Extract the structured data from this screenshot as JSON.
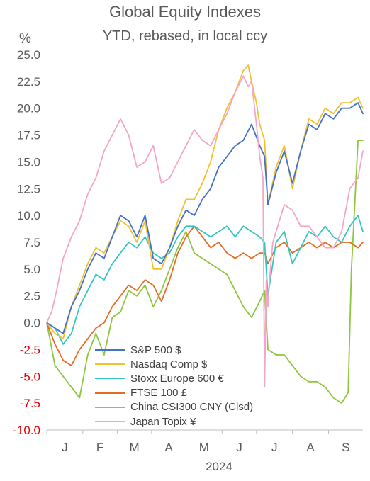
{
  "title": "Global Equity Indexes",
  "subtitle": "YTD, rebased, in local ccy",
  "unit": "%",
  "colors": {
    "negative_tick": "#e00000",
    "text": "#595959"
  },
  "chart_data": {
    "type": "line",
    "title": "Global Equity Indexes",
    "subtitle": "YTD, rebased, in local ccy",
    "ylabel": "%",
    "xlabel": "2024",
    "ylim": [
      -10,
      25
    ],
    "xlim": [
      0,
      193
    ],
    "yticks": [
      "25.0",
      "22.5",
      "20.0",
      "17.5",
      "15.0",
      "12.5",
      "10.0",
      "7.5",
      "5.0",
      "2.5",
      "0.0",
      "-2.5",
      "-5.0",
      "-7.5",
      "-10.0"
    ],
    "ytick_values": [
      25,
      22.5,
      20,
      17.5,
      15,
      12.5,
      10,
      7.5,
      5,
      2.5,
      0,
      -2.5,
      -5,
      -7.5,
      -10
    ],
    "months": [
      "J",
      "F",
      "M",
      "A",
      "M",
      "J",
      "J",
      "A",
      "S"
    ],
    "month_starts": [
      0,
      22,
      43,
      64,
      85,
      107,
      128,
      150,
      172
    ],
    "year_label": "2024",
    "grid": false,
    "legend_position": "bottom-left inside",
    "x_unit": "trading days since start of year",
    "series": [
      {
        "name": "S&P 500 $",
        "color": "#4472c4",
        "x": [
          0,
          5,
          10,
          15,
          20,
          25,
          30,
          35,
          40,
          45,
          50,
          55,
          60,
          65,
          70,
          75,
          80,
          85,
          90,
          95,
          100,
          105,
          110,
          115,
          120,
          125,
          130,
          133,
          135,
          140,
          145,
          150,
          155,
          160,
          165,
          170,
          175,
          180,
          185,
          190,
          193
        ],
        "y": [
          0,
          -0.5,
          -1.0,
          1.5,
          3.0,
          5.0,
          6.5,
          6.0,
          8.0,
          10.0,
          9.5,
          8.0,
          10.0,
          6.0,
          5.5,
          7.0,
          9.0,
          10.5,
          10.0,
          11.5,
          12.5,
          14.5,
          15.5,
          16.5,
          17.0,
          18.5,
          16.5,
          15.5,
          11.0,
          14.0,
          16.0,
          13.0,
          16.0,
          18.5,
          18.0,
          19.5,
          19.0,
          20.0,
          20.0,
          20.5,
          19.5
        ]
      },
      {
        "name": "Nasdaq Comp $",
        "color": "#f2c12e",
        "x": [
          0,
          5,
          10,
          15,
          20,
          25,
          30,
          35,
          40,
          45,
          50,
          55,
          60,
          65,
          70,
          75,
          80,
          85,
          90,
          95,
          100,
          105,
          110,
          115,
          120,
          123,
          125,
          128,
          130,
          133,
          135,
          140,
          145,
          150,
          155,
          160,
          165,
          170,
          175,
          180,
          185,
          190,
          193
        ],
        "y": [
          0,
          -1.0,
          -1.5,
          1.5,
          3.5,
          5.5,
          7.0,
          6.5,
          8.0,
          9.5,
          9.0,
          7.5,
          9.5,
          5.0,
          5.0,
          7.0,
          9.5,
          11.5,
          11.5,
          13.0,
          15.0,
          18.0,
          20.0,
          21.5,
          23.5,
          24.0,
          22.5,
          20.5,
          18.5,
          17.0,
          11.0,
          14.5,
          16.5,
          12.5,
          16.0,
          19.0,
          18.5,
          20.0,
          19.5,
          20.5,
          20.5,
          21.0,
          20.0
        ]
      },
      {
        "name": "Stoxx Europe 600 €",
        "color": "#33c5c5",
        "x": [
          0,
          5,
          10,
          15,
          20,
          25,
          30,
          35,
          40,
          45,
          50,
          55,
          60,
          65,
          70,
          75,
          80,
          85,
          90,
          95,
          100,
          105,
          110,
          115,
          120,
          125,
          130,
          133,
          135,
          140,
          145,
          150,
          155,
          160,
          165,
          170,
          175,
          180,
          185,
          190,
          193
        ],
        "y": [
          0,
          -0.5,
          -2.0,
          -1.0,
          1.5,
          3.0,
          4.5,
          4.0,
          5.5,
          6.5,
          7.5,
          7.0,
          8.0,
          6.5,
          6.0,
          6.5,
          8.0,
          9.0,
          9.0,
          8.5,
          8.0,
          8.5,
          9.0,
          8.0,
          9.0,
          8.5,
          8.0,
          7.5,
          2.5,
          7.5,
          8.5,
          5.5,
          7.0,
          8.5,
          8.0,
          9.0,
          8.0,
          7.5,
          9.0,
          10.0,
          8.5
        ]
      },
      {
        "name": "FTSE 100 £",
        "color": "#e46c22",
        "x": [
          0,
          5,
          10,
          15,
          20,
          25,
          30,
          35,
          40,
          45,
          50,
          55,
          60,
          65,
          70,
          75,
          80,
          85,
          90,
          95,
          100,
          105,
          110,
          115,
          120,
          125,
          130,
          133,
          135,
          140,
          145,
          150,
          155,
          160,
          165,
          170,
          175,
          180,
          185,
          190,
          193
        ],
        "y": [
          0,
          -2.0,
          -3.5,
          -4.0,
          -2.5,
          -1.5,
          -0.5,
          0.0,
          1.5,
          2.5,
          3.5,
          3.0,
          4.0,
          3.5,
          2.0,
          4.0,
          6.5,
          8.0,
          9.0,
          8.0,
          7.0,
          7.5,
          6.5,
          6.0,
          6.5,
          6.0,
          6.5,
          6.5,
          5.5,
          7.0,
          7.5,
          6.5,
          7.0,
          7.5,
          7.0,
          7.5,
          7.0,
          7.5,
          7.5,
          7.0,
          7.5
        ]
      },
      {
        "name": "China CSI300 CNY (Clsd)",
        "color": "#8dc63f",
        "x": [
          0,
          5,
          10,
          15,
          20,
          25,
          30,
          35,
          40,
          45,
          50,
          55,
          60,
          65,
          70,
          75,
          80,
          85,
          90,
          95,
          100,
          105,
          110,
          115,
          120,
          125,
          130,
          133,
          135,
          140,
          145,
          150,
          155,
          160,
          165,
          170,
          175,
          180,
          184,
          186,
          190,
          193
        ],
        "y": [
          0,
          -4.0,
          -5.0,
          -6.0,
          -7.0,
          -3.0,
          -1.0,
          -3.0,
          0.5,
          1.0,
          3.0,
          2.5,
          3.5,
          1.5,
          3.0,
          5.0,
          7.0,
          8.5,
          6.5,
          6.0,
          5.5,
          5.0,
          4.5,
          3.0,
          1.5,
          0.5,
          2.0,
          3.0,
          -2.5,
          -3.0,
          -3.0,
          -4.0,
          -5.0,
          -5.5,
          -5.5,
          -6.0,
          -7.0,
          -7.5,
          -6.5,
          5.0,
          17.0,
          17.0
        ]
      },
      {
        "name": "Japan Topix ¥",
        "color": "#f4a6c8",
        "x": [
          0,
          3,
          6,
          10,
          15,
          20,
          25,
          30,
          35,
          40,
          45,
          50,
          55,
          60,
          65,
          70,
          75,
          80,
          85,
          90,
          95,
          100,
          105,
          110,
          115,
          120,
          123,
          125,
          128,
          130,
          132,
          133,
          134,
          135,
          136,
          138,
          140,
          145,
          150,
          155,
          160,
          165,
          170,
          175,
          180,
          185,
          190,
          193
        ],
        "y": [
          0,
          1.0,
          3.0,
          6.0,
          8.0,
          9.5,
          12.0,
          13.5,
          16.0,
          17.5,
          19.0,
          17.5,
          14.5,
          15.0,
          16.5,
          13.0,
          13.5,
          15.0,
          16.5,
          18.0,
          17.0,
          16.5,
          18.0,
          19.5,
          21.5,
          23.0,
          22.0,
          22.5,
          18.5,
          15.5,
          13.5,
          -6.0,
          4.0,
          1.5,
          4.0,
          7.5,
          8.5,
          11.0,
          10.5,
          9.0,
          9.0,
          8.0,
          7.0,
          7.0,
          8.5,
          12.5,
          13.5,
          16.0
        ]
      }
    ]
  }
}
